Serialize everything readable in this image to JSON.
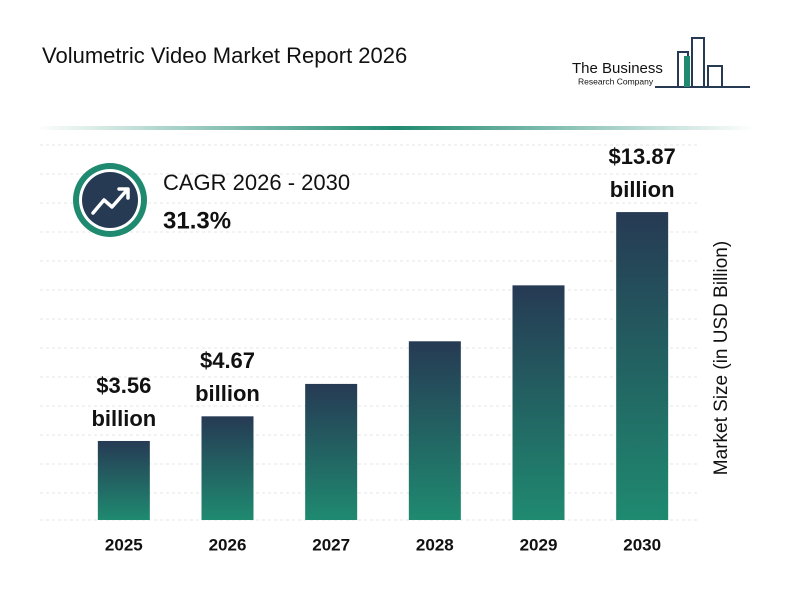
{
  "header": {
    "title": "Volumetric Video Market Report 2026",
    "logo": {
      "line1": "The Business",
      "line2": "Research Company"
    }
  },
  "cagr": {
    "label": "CAGR 2026 - 2030",
    "value": "31.3%"
  },
  "chart_data": {
    "type": "bar",
    "categories": [
      "2025",
      "2026",
      "2027",
      "2028",
      "2029",
      "2030"
    ],
    "values": [
      3.56,
      4.67,
      6.13,
      8.05,
      10.57,
      13.87
    ],
    "value_labels": [
      "$3.56 billion",
      "$4.67 billion",
      null,
      null,
      null,
      "$13.87 billion"
    ],
    "y_axis_label": "Market Size (in USD Billion)",
    "ylim": [
      0,
      15
    ],
    "gradient": [
      "#263a54",
      "#1f8a70"
    ]
  }
}
